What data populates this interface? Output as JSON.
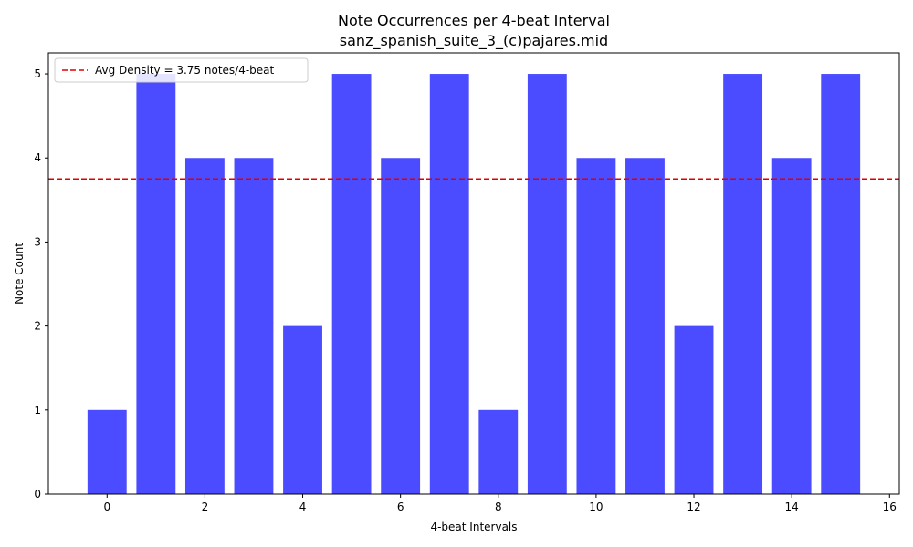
{
  "chart_data": {
    "type": "bar",
    "title": "Note Occurrences per 4-beat Interval",
    "subtitle": "sanz_spanish_suite_3_(c)pajares.mid",
    "xlabel": "4-beat Intervals",
    "ylabel": "Note Count",
    "x": [
      0,
      1,
      2,
      3,
      4,
      5,
      6,
      7,
      8,
      9,
      10,
      11,
      12,
      13,
      14,
      15
    ],
    "values": [
      1,
      5,
      4,
      4,
      2,
      5,
      4,
      5,
      1,
      5,
      4,
      4,
      2,
      5,
      4,
      5
    ],
    "xlim": [
      -1.2,
      16.2
    ],
    "ylim": [
      0,
      5.25
    ],
    "xticks": [
      0,
      2,
      4,
      6,
      8,
      10,
      12,
      14,
      16
    ],
    "yticks": [
      0,
      1,
      2,
      3,
      4,
      5
    ],
    "bar_color": "#4b4bff",
    "reference_line": {
      "value": 3.75,
      "label": "Avg Density = 3.75 notes/4-beat",
      "color": "#dd0000",
      "style": "dashed"
    },
    "legend": "top-left",
    "grid": false
  }
}
